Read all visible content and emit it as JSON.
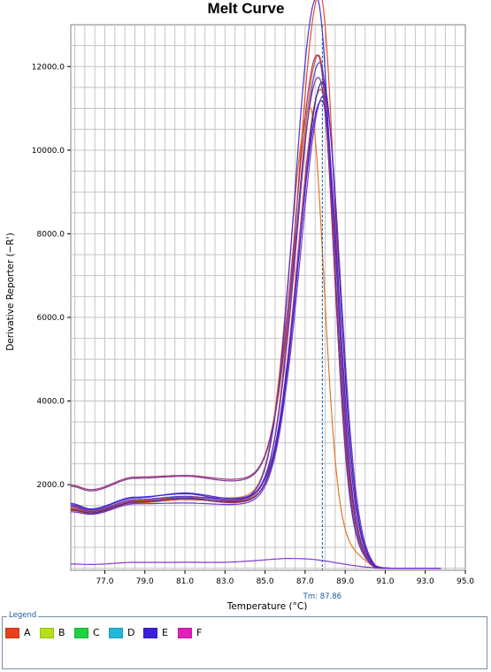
{
  "chart_data": {
    "type": "line",
    "title": "Melt Curve",
    "xlabel": "Temperature (°C)",
    "ylabel": "Derivative Reporter (−R')",
    "xlim": [
      75.3,
      95.0
    ],
    "ylim": [
      -50,
      13000
    ],
    "x_ticks": [
      77.0,
      79.0,
      81.0,
      83.0,
      85.0,
      87.0,
      89.0,
      91.0,
      93.0,
      95.0
    ],
    "x_tick_labels": [
      "77.0",
      "79.0",
      "81.0",
      "83.0",
      "85.0",
      "87.0",
      "89.0",
      "91.0",
      "93.0",
      "95.0"
    ],
    "y_ticks": [
      2000,
      4000,
      6000,
      8000,
      10000,
      12000
    ],
    "y_tick_labels": [
      "2000.0",
      "4000.0",
      "6000.0",
      "8000.0",
      "10000.0",
      "12000.0"
    ],
    "grid": true,
    "tm_marker": {
      "x": 87.86,
      "label": "Tm: 87.86"
    },
    "series": [
      {
        "color": "#e8401c",
        "peak": 12950,
        "center": 87.75,
        "width": 1.05,
        "base": [
          1420,
          1330,
          1560,
          1640,
          1600
        ]
      },
      {
        "color": "#d45a20",
        "peak": 11450,
        "center": 87.7,
        "width": 1.05,
        "base": [
          1500,
          1380,
          1620,
          1700,
          1640
        ]
      },
      {
        "color": "#e07018",
        "peak": 10050,
        "center": 87.25,
        "width": 0.95,
        "base": [
          1380,
          1300,
          1560,
          1700,
          1680
        ]
      },
      {
        "color": "#c83c3c",
        "peak": 10700,
        "center": 87.8,
        "width": 1.08,
        "base": [
          1450,
          1350,
          1600,
          1660,
          1560
        ]
      },
      {
        "color": "#3a28d8",
        "peak": 12800,
        "center": 87.6,
        "width": 1.05,
        "base": [
          1550,
          1420,
          1700,
          1780,
          1620
        ]
      },
      {
        "color": "#5030c0",
        "peak": 11300,
        "center": 87.75,
        "width": 1.08,
        "base": [
          1480,
          1360,
          1640,
          1720,
          1620
        ]
      },
      {
        "color": "#2a20a0",
        "peak": 10900,
        "center": 87.9,
        "width": 1.1,
        "base": [
          1400,
          1320,
          1580,
          1680,
          1580
        ]
      },
      {
        "color": "#7a3090",
        "peak": 10700,
        "center": 87.7,
        "width": 1.08,
        "base": [
          1960,
          1850,
          2150,
          2200,
          2080
        ]
      },
      {
        "color": "#9a3070",
        "peak": 11200,
        "center": 87.65,
        "width": 1.05,
        "base": [
          1990,
          1880,
          2180,
          2220,
          2120
        ]
      },
      {
        "color": "#6a2ad0",
        "peak": 10600,
        "center": 87.95,
        "width": 1.12,
        "base": [
          1350,
          1290,
          1540,
          1560,
          1520
        ]
      },
      {
        "color": "#4020e0",
        "peak": 10400,
        "center": 87.85,
        "width": 1.1,
        "base": [
          1520,
          1400,
          1680,
          1800,
          1660
        ]
      },
      {
        "color": "#7a2fd0",
        "peak": 150,
        "center": 87.0,
        "width": 2.0,
        "base": [
          100,
          90,
          140,
          140,
          120
        ]
      }
    ]
  },
  "legend": {
    "title": "Legend",
    "items": [
      {
        "label": "A",
        "color": "#e8401c"
      },
      {
        "label": "B",
        "color": "#b6e01c"
      },
      {
        "label": "C",
        "color": "#20d040"
      },
      {
        "label": "D",
        "color": "#20b8d8"
      },
      {
        "label": "E",
        "color": "#3a20d8"
      },
      {
        "label": "F",
        "color": "#e020b8"
      }
    ]
  }
}
